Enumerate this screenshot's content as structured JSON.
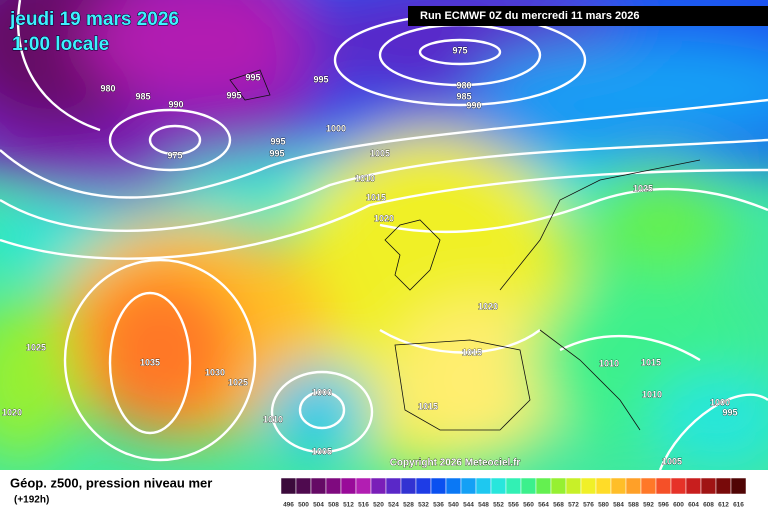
{
  "header": {
    "date": "jeudi 19 mars 2026",
    "time": "1:00 locale",
    "run": "Run ECMWF 0Z du mercredi 11 mars 2026"
  },
  "map": {
    "isobar_labels": [
      995,
      995,
      995,
      980,
      985,
      990,
      975,
      975,
      980,
      985,
      990,
      1000,
      995,
      995,
      1005,
      1010,
      1015,
      1020,
      1025,
      1020,
      1015,
      1015,
      1010,
      1015,
      1010,
      1000,
      995,
      1005,
      1035,
      1030,
      1025,
      1025,
      1020,
      1000,
      1010,
      1005
    ],
    "copyright": "Copyright 2026 Meteociel.fr"
  },
  "legend": {
    "title": "Géop. z500, pression niveau mer",
    "lead": "(+192h)",
    "scale": [
      {
        "value": 496,
        "color": "#3b0a3b"
      },
      {
        "value": 500,
        "color": "#4f0a4f"
      },
      {
        "value": 504,
        "color": "#650a65"
      },
      {
        "value": 508,
        "color": "#7f0a7f"
      },
      {
        "value": 512,
        "color": "#990a99"
      },
      {
        "value": 516,
        "color": "#b21eb2"
      },
      {
        "value": 520,
        "color": "#7a1eb8"
      },
      {
        "value": 524,
        "color": "#5a28c8"
      },
      {
        "value": 528,
        "color": "#3232d2"
      },
      {
        "value": 532,
        "color": "#1e3ce6"
      },
      {
        "value": 536,
        "color": "#0a50f0"
      },
      {
        "value": 540,
        "color": "#0a78f5"
      },
      {
        "value": 544,
        "color": "#14a0f5"
      },
      {
        "value": 548,
        "color": "#1ec8f0"
      },
      {
        "value": 552,
        "color": "#28e6dc"
      },
      {
        "value": 556,
        "color": "#32f0b4"
      },
      {
        "value": 560,
        "color": "#3cf08c"
      },
      {
        "value": 564,
        "color": "#64f050"
      },
      {
        "value": 568,
        "color": "#96f032"
      },
      {
        "value": 572,
        "color": "#c8f028"
      },
      {
        "value": 576,
        "color": "#f0f028"
      },
      {
        "value": 580,
        "color": "#ffdc28"
      },
      {
        "value": 584,
        "color": "#ffbe28"
      },
      {
        "value": 588,
        "color": "#ffa028"
      },
      {
        "value": 592,
        "color": "#ff7828"
      },
      {
        "value": 596,
        "color": "#f55028"
      },
      {
        "value": 600,
        "color": "#e63228"
      },
      {
        "value": 604,
        "color": "#c81e1e"
      },
      {
        "value": 608,
        "color": "#a01414"
      },
      {
        "value": 612,
        "color": "#780a0a"
      },
      {
        "value": 616,
        "color": "#500505"
      }
    ]
  }
}
